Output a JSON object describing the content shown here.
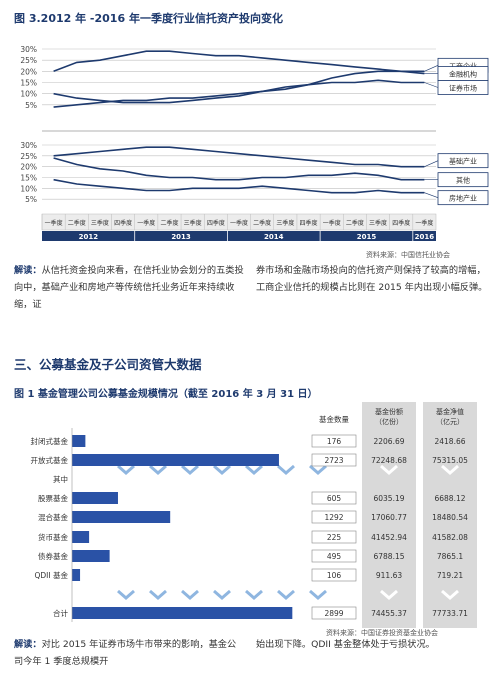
{
  "figure1": {
    "title": "图 3.2012 年 -2016 年一季度行业信托资产投向变化",
    "top_y_ticks": [
      "30%",
      "25%",
      "20%",
      "15%",
      "10%",
      "5%"
    ],
    "bottom_y_ticks": [
      "30%",
      "25%",
      "20%",
      "15%",
      "10%",
      "5%"
    ],
    "quarters": [
      "一季度",
      "二季度",
      "三季度",
      "四季度",
      "一季度",
      "二季度",
      "三季度",
      "四季度",
      "一季度",
      "二季度",
      "三季度",
      "四季度",
      "一季度",
      "二季度",
      "三季度",
      "四季度",
      "一季度"
    ],
    "years": [
      "2012",
      "2013",
      "2014",
      "2015",
      "2016"
    ],
    "source": "资料来源：中国信托业协会",
    "top_series": [
      {
        "name": "工商企业",
        "values": [
          20,
          24,
          25,
          27,
          29,
          29,
          28,
          27,
          27,
          26,
          25,
          24,
          23,
          22,
          21,
          20,
          20
        ]
      },
      {
        "name": "金融机构",
        "values": [
          4,
          5,
          6,
          7,
          7,
          8,
          8,
          9,
          10,
          11,
          12,
          14,
          17,
          19,
          20,
          20,
          19
        ]
      },
      {
        "name": "证券市场",
        "values": [
          10,
          8,
          7,
          6,
          6,
          6,
          7,
          8,
          9,
          11,
          13,
          14,
          15,
          15,
          16,
          15,
          15
        ]
      }
    ],
    "bottom_series": [
      {
        "name": "基础产业",
        "values": [
          25,
          26,
          27,
          28,
          29,
          29,
          28,
          27,
          26,
          25,
          24,
          23,
          22,
          21,
          21,
          20,
          20
        ]
      },
      {
        "name": "其他",
        "values": [
          24,
          21,
          19,
          18,
          16,
          15,
          15,
          14,
          14,
          15,
          15,
          16,
          16,
          17,
          16,
          14,
          14
        ]
      },
      {
        "name": "房地产业",
        "values": [
          14,
          12,
          11,
          10,
          9,
          9,
          10,
          10,
          10,
          11,
          10,
          9,
          8,
          8,
          9,
          8,
          8
        ]
      }
    ],
    "chart_data": [
      {
        "type": "line",
        "x": [
          "2012Q1",
          "2012Q2",
          "2012Q3",
          "2012Q4",
          "2013Q1",
          "2013Q2",
          "2013Q3",
          "2013Q4",
          "2014Q1",
          "2014Q2",
          "2014Q3",
          "2014Q4",
          "2015Q1",
          "2015Q2",
          "2015Q3",
          "2015Q4",
          "2016Q1"
        ],
        "ylim": [
          0,
          30
        ],
        "series": [
          {
            "name": "工商企业",
            "values": [
              20,
              24,
              25,
              27,
              29,
              29,
              28,
              27,
              27,
              26,
              25,
              24,
              23,
              22,
              21,
              20,
              20
            ]
          },
          {
            "name": "金融机构",
            "values": [
              4,
              5,
              6,
              7,
              7,
              8,
              8,
              9,
              10,
              11,
              12,
              14,
              17,
              19,
              20,
              20,
              19
            ]
          },
          {
            "name": "证券市场",
            "values": [
              10,
              8,
              7,
              6,
              6,
              6,
              7,
              8,
              9,
              11,
              13,
              14,
              15,
              15,
              16,
              15,
              15
            ]
          }
        ]
      },
      {
        "type": "line",
        "x": [
          "2012Q1",
          "2012Q2",
          "2012Q3",
          "2012Q4",
          "2013Q1",
          "2013Q2",
          "2013Q3",
          "2013Q4",
          "2014Q1",
          "2014Q2",
          "2014Q3",
          "2014Q4",
          "2015Q1",
          "2015Q2",
          "2015Q3",
          "2015Q4",
          "2016Q1"
        ],
        "ylim": [
          0,
          30
        ],
        "series": [
          {
            "name": "基础产业",
            "values": [
              25,
              26,
              27,
              28,
              29,
              29,
              28,
              27,
              26,
              25,
              24,
              23,
              22,
              21,
              21,
              20,
              20
            ]
          },
          {
            "name": "其他",
            "values": [
              24,
              21,
              19,
              18,
              16,
              15,
              15,
              14,
              14,
              15,
              15,
              16,
              16,
              17,
              16,
              14,
              14
            ]
          },
          {
            "name": "房地产业",
            "values": [
              14,
              12,
              11,
              10,
              9,
              9,
              10,
              10,
              10,
              11,
              10,
              9,
              8,
              8,
              9,
              8,
              8
            ]
          }
        ]
      }
    ]
  },
  "para1": {
    "label": "解读：",
    "left": "从信托资金投向来看，在信托业协会划分的五类投向中，基础产业和房地产等传统信托业务近年来持续收缩，证",
    "right": "券市场和金融市场投向的信托资产则保持了较高的增幅，工商企业信托的规模占比则在 2015 年内出现小幅反弹。"
  },
  "section_title": "三、公募基金及子公司资管大数据",
  "figure2": {
    "title": "图 1 基金管理公司公募基金规模情况（截至 2016 年 3 月 31 日）",
    "col_count": "基金数量",
    "col_share": "基金份额\n（亿份）",
    "col_nav": "基金净值\n（亿元）",
    "source": "资料来源：中国证券投资基金业协会",
    "rows": [
      {
        "name": "封闭式基金",
        "count": "176",
        "share": "2206.69",
        "nav": "2418.66",
        "bar": 176
      },
      {
        "name": "开放式基金",
        "count": "2723",
        "share": "72248.68",
        "nav": "75315.05",
        "bar": 2723
      },
      {
        "name": "其中",
        "count": "",
        "share": "",
        "nav": "",
        "bar": 0
      },
      {
        "name": "股票基金",
        "count": "605",
        "share": "6035.19",
        "nav": "6688.12",
        "bar": 605
      },
      {
        "name": "混合基金",
        "count": "1292",
        "share": "17060.77",
        "nav": "18480.54",
        "bar": 1292
      },
      {
        "name": "货币基金",
        "count": "225",
        "share": "41452.94",
        "nav": "41582.08",
        "bar": 225
      },
      {
        "name": "债券基金",
        "count": "495",
        "share": "6788.15",
        "nav": "7865.1",
        "bar": 495
      },
      {
        "name": "QDII 基金",
        "count": "106",
        "share": "911.63",
        "nav": "719.21",
        "bar": 106
      },
      {
        "name": "合计",
        "count": "2899",
        "share": "74455.37",
        "nav": "77733.71",
        "bar": 2899
      }
    ],
    "chart_data": {
      "type": "bar",
      "categories": [
        "封闭式基金",
        "开放式基金",
        "股票基金",
        "混合基金",
        "货币基金",
        "债券基金",
        "QDII 基金",
        "合计"
      ],
      "values": [
        176,
        2723,
        605,
        1292,
        225,
        495,
        106,
        2899
      ]
    }
  },
  "para2": {
    "label": "解读：",
    "left": "对比 2015 年证券市场牛市带来的影响，基金公司今年 1 季度总规模开",
    "right": "始出现下降。QDII 基金整体处于亏损状况。"
  },
  "colors": {
    "navy": "#1e3a6e",
    "bar": "#2a52a6",
    "grey": "#d9d9d9"
  }
}
